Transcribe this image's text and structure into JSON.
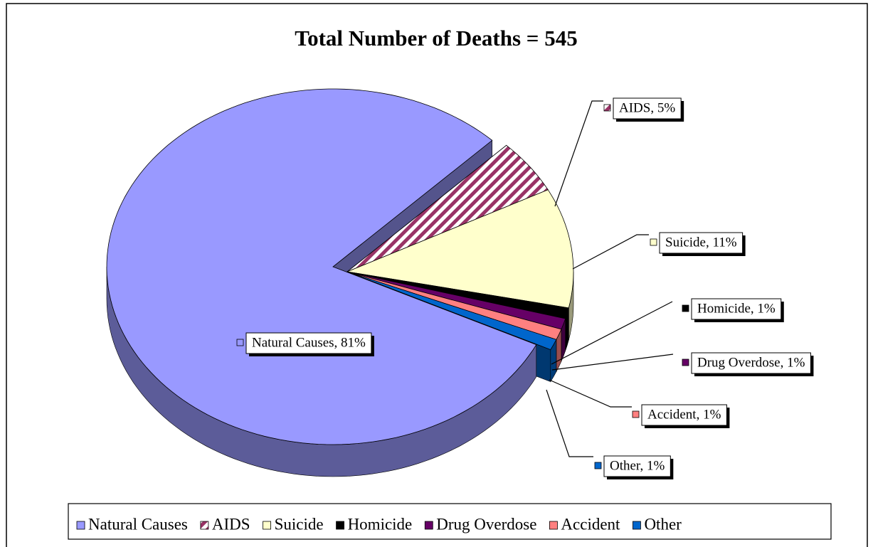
{
  "chart_data": {
    "type": "pie",
    "title": "Total Number of Deaths = 545",
    "categories": [
      "Natural Causes",
      "AIDS",
      "Suicide",
      "Homicide",
      "Drug Overdose",
      "Accident",
      "Other"
    ],
    "values": [
      81,
      5,
      11,
      1,
      1,
      1,
      1
    ],
    "value_labels": [
      "Natural Causes, 81%",
      "AIDS, 5%",
      "Suicide, 11%",
      "Homicide, 1%",
      "Drug Overdose, 1%",
      "Accident, 1%",
      "Other, 1%"
    ],
    "colors": [
      "#9999ff",
      "#993366",
      "#ffffcc",
      "#000000",
      "#660066",
      "#ff8080",
      "#0066cc"
    ],
    "hatch": [
      false,
      true,
      false,
      false,
      false,
      false,
      false
    ],
    "legend": "bottom"
  }
}
